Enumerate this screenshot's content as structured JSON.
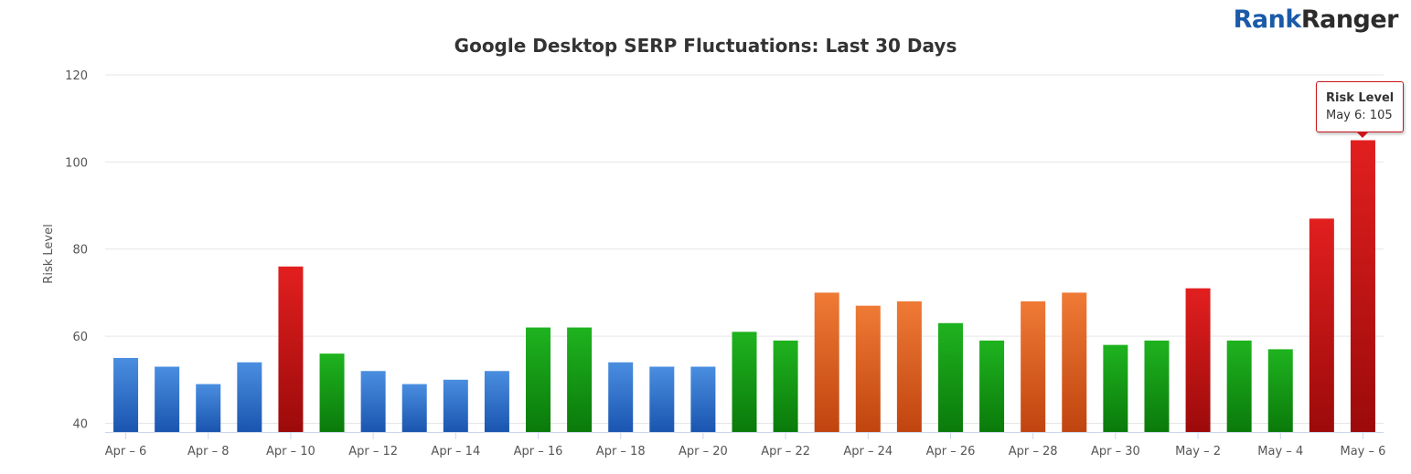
{
  "logo": {
    "part1": "Rank",
    "part2": "Ranger"
  },
  "chart_data": {
    "type": "bar",
    "title": "Google Desktop SERP Fluctuations: Last 30 Days",
    "ylabel": "Risk Level",
    "ylim": [
      38,
      120
    ],
    "yticks": [
      40,
      60,
      80,
      100,
      120
    ],
    "categories": [
      "Apr 6",
      "Apr 7",
      "Apr 8",
      "Apr 9",
      "Apr 10",
      "Apr 11",
      "Apr 12",
      "Apr 13",
      "Apr 14",
      "Apr 15",
      "Apr 16",
      "Apr 17",
      "Apr 18",
      "Apr 19",
      "Apr 20",
      "Apr 21",
      "Apr 22",
      "Apr 23",
      "Apr 24",
      "Apr 25",
      "Apr 26",
      "Apr 27",
      "Apr 28",
      "Apr 29",
      "Apr 30",
      "May 1",
      "May 2",
      "May 3",
      "May 4",
      "May 5",
      "May 6"
    ],
    "tick_labels": [
      "Apr – 6",
      "Apr – 8",
      "Apr – 10",
      "Apr – 12",
      "Apr – 14",
      "Apr – 16",
      "Apr – 18",
      "Apr – 20",
      "Apr – 22",
      "Apr – 24",
      "Apr – 26",
      "Apr – 28",
      "Apr – 30",
      "May – 2",
      "May – 4",
      "May – 6"
    ],
    "values": [
      55,
      53,
      49,
      54,
      76,
      56,
      52,
      49,
      50,
      52,
      62,
      62,
      54,
      53,
      53,
      61,
      59,
      70,
      67,
      68,
      63,
      59,
      68,
      70,
      58,
      59,
      71,
      59,
      57,
      87,
      105
    ],
    "levels": [
      "blue",
      "blue",
      "blue",
      "blue",
      "red",
      "green",
      "blue",
      "blue",
      "blue",
      "blue",
      "green",
      "green",
      "blue",
      "blue",
      "blue",
      "green",
      "green",
      "orange",
      "orange",
      "orange",
      "green",
      "green",
      "orange",
      "orange",
      "green",
      "green",
      "red",
      "green",
      "green",
      "red",
      "red"
    ],
    "colors": {
      "blue": [
        "#4a8ee0",
        "#1a55b0"
      ],
      "green": [
        "#1fb31f",
        "#0a7a0a"
      ],
      "orange": [
        "#ef7a35",
        "#c0440f"
      ],
      "red": [
        "#e21f1f",
        "#9c0a0a"
      ]
    },
    "grid": true,
    "legend": "none"
  },
  "tooltip": {
    "title": "Risk Level",
    "text": "May 6: 105"
  }
}
